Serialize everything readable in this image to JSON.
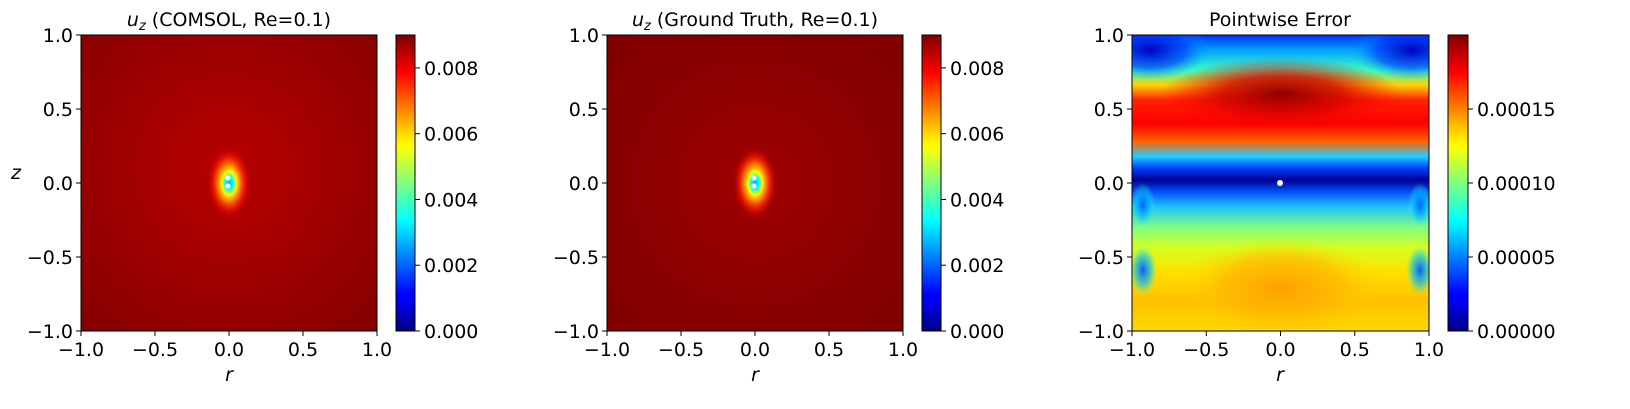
{
  "chart_data": [
    {
      "type": "heatmap",
      "title_var": "u",
      "title_sub": "z",
      "title_rest": " (COMSOL, Re=0.1)",
      "xlabel": "r",
      "ylabel": "z",
      "xlim": [
        -1.0,
        1.0
      ],
      "ylim": [
        -1.0,
        1.0
      ],
      "xticks": [
        "−1.0",
        "−0.5",
        "0.0",
        "0.5",
        "1.0"
      ],
      "yticks": [
        "−1.0",
        "−0.5",
        "0.0",
        "0.5",
        "1.0"
      ],
      "colormap": "jet",
      "colorbar": {
        "range": [
          0.0,
          0.009
        ],
        "ticks": [
          "0.000",
          "0.002",
          "0.004",
          "0.006",
          "0.008"
        ],
        "tick_values": [
          0.0,
          0.002,
          0.004,
          0.006,
          0.008
        ]
      },
      "field": "Near-uniform high value (~0.0085) over the domain, dropping sharply to ~0 at a small region near (r=0, z=0)"
    },
    {
      "type": "heatmap",
      "title_var": "u",
      "title_sub": "z",
      "title_rest": " (Ground Truth, Re=0.1)",
      "xlabel": "r",
      "ylabel": "",
      "xlim": [
        -1.0,
        1.0
      ],
      "ylim": [
        -1.0,
        1.0
      ],
      "xticks": [
        "−1.0",
        "−0.5",
        "0.0",
        "0.5",
        "1.0"
      ],
      "yticks": [
        "−1.0",
        "−0.5",
        "0.0",
        "0.5",
        "1.0"
      ],
      "colormap": "jet",
      "colorbar": {
        "range": [
          0.0,
          0.009
        ],
        "ticks": [
          "0.000",
          "0.002",
          "0.004",
          "0.006",
          "0.008"
        ],
        "tick_values": [
          0.0,
          0.002,
          0.004,
          0.006,
          0.008
        ]
      },
      "field": "Near-uniform high value (~0.0087) over the domain, dropping sharply to ~0 at a small region near (r=0, z=0)"
    },
    {
      "type": "heatmap",
      "title_var": "",
      "title_sub": "",
      "title_rest": "Pointwise Error",
      "xlabel": "r",
      "ylabel": "",
      "xlim": [
        -1.0,
        1.0
      ],
      "ylim": [
        -1.0,
        1.0
      ],
      "xticks": [
        "−1.0",
        "−0.5",
        "0.0",
        "0.5",
        "1.0"
      ],
      "yticks": [
        "−1.0",
        "−0.5",
        "0.0",
        "0.5",
        "1.0"
      ],
      "colormap": "jet",
      "colorbar": {
        "range": [
          0.0,
          0.0002
        ],
        "ticks": [
          "0.00000",
          "0.00005",
          "0.00010",
          "0.00015"
        ],
        "tick_values": [
          0.0,
          5e-05,
          0.0001,
          0.00015
        ]
      },
      "field": "Max error (~0.0002) in band around z=0.6, low (~0) band near z=0.05 and at top corners, moderate (~0.00013) near z=-0.75"
    }
  ]
}
